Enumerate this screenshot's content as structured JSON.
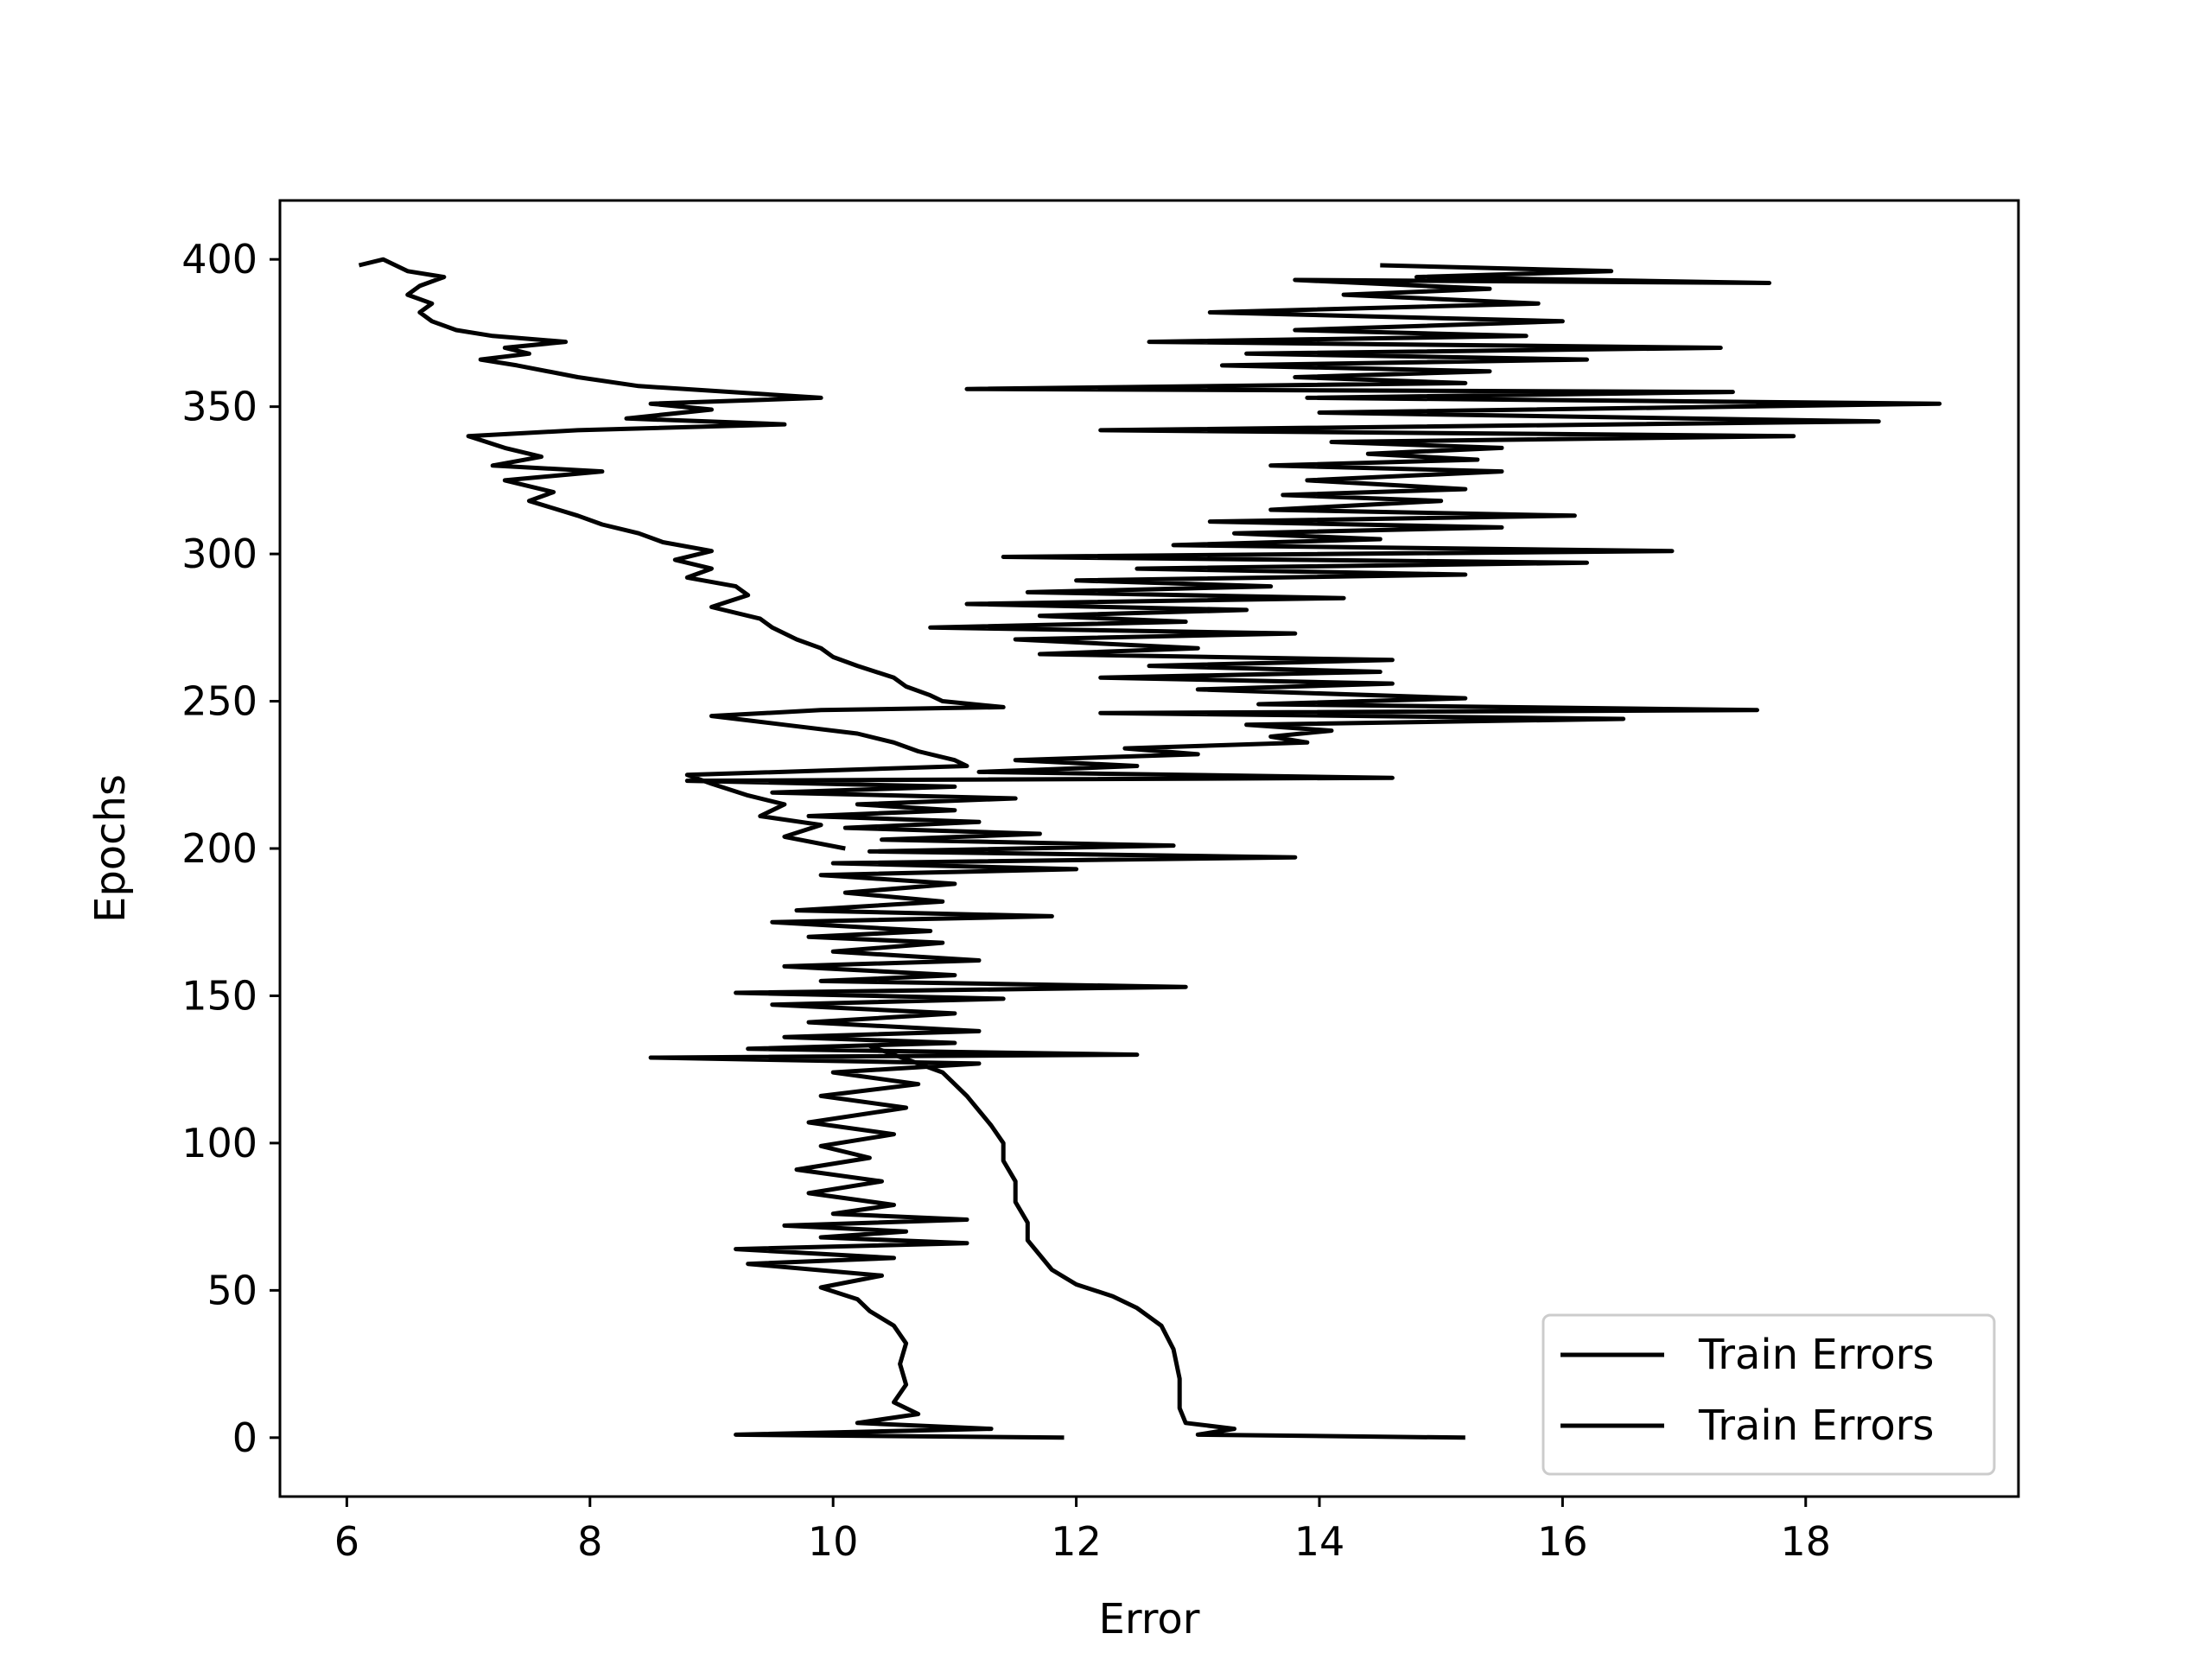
{
  "chart_data": {
    "type": "line",
    "title": "",
    "xlabel": "Error",
    "ylabel": "Epochs",
    "xlim": [
      5.45,
      19.75
    ],
    "ylim": [
      -20,
      420
    ],
    "xticks": [
      6,
      8,
      10,
      12,
      14,
      16,
      18
    ],
    "yticks": [
      0,
      50,
      100,
      150,
      200,
      250,
      300,
      350,
      400
    ],
    "grid": false,
    "legend_position": "lower right",
    "line_color": "#000000",
    "series": [
      {
        "name": "Train Errors",
        "points": [
          [
            11.9,
            0
          ],
          [
            9.2,
            1
          ],
          [
            11.3,
            3
          ],
          [
            10.2,
            5
          ],
          [
            10.7,
            8
          ],
          [
            10.5,
            12
          ],
          [
            10.6,
            18
          ],
          [
            10.55,
            25
          ],
          [
            10.6,
            32
          ],
          [
            10.5,
            38
          ],
          [
            10.3,
            43
          ],
          [
            10.2,
            47
          ],
          [
            9.9,
            51
          ],
          [
            10.4,
            55
          ],
          [
            9.3,
            59
          ],
          [
            10.5,
            61
          ],
          [
            9.2,
            64
          ],
          [
            11.1,
            66
          ],
          [
            9.9,
            68
          ],
          [
            10.6,
            70
          ],
          [
            9.6,
            72
          ],
          [
            11.1,
            74
          ],
          [
            10.0,
            76
          ],
          [
            10.5,
            79
          ],
          [
            9.8,
            83
          ],
          [
            10.4,
            87
          ],
          [
            9.7,
            91
          ],
          [
            10.3,
            95
          ],
          [
            9.9,
            99
          ],
          [
            10.5,
            103
          ],
          [
            9.8,
            107
          ],
          [
            10.6,
            112
          ],
          [
            9.9,
            116
          ],
          [
            10.7,
            120
          ],
          [
            10.0,
            124
          ],
          [
            11.2,
            127
          ],
          [
            8.5,
            129
          ],
          [
            12.5,
            130
          ],
          [
            9.3,
            132
          ],
          [
            11.0,
            134
          ],
          [
            9.6,
            136
          ],
          [
            11.2,
            138
          ],
          [
            9.8,
            141
          ],
          [
            11.0,
            144
          ],
          [
            9.5,
            147
          ],
          [
            11.4,
            149
          ],
          [
            9.2,
            151
          ],
          [
            12.9,
            153
          ],
          [
            9.9,
            155
          ],
          [
            11.0,
            157
          ],
          [
            9.6,
            160
          ],
          [
            11.2,
            162
          ],
          [
            10.0,
            165
          ],
          [
            10.9,
            168
          ],
          [
            9.8,
            170
          ],
          [
            10.8,
            172
          ],
          [
            9.5,
            175
          ],
          [
            11.8,
            177
          ],
          [
            9.7,
            179
          ],
          [
            10.9,
            182
          ],
          [
            10.1,
            185
          ],
          [
            11.0,
            188
          ],
          [
            9.9,
            191
          ],
          [
            12.0,
            193
          ],
          [
            10.0,
            195
          ],
          [
            13.8,
            197
          ],
          [
            10.3,
            199
          ],
          [
            12.8,
            201
          ],
          [
            10.4,
            203
          ],
          [
            11.7,
            205
          ],
          [
            10.1,
            207
          ],
          [
            11.2,
            209
          ],
          [
            9.8,
            211
          ],
          [
            11.0,
            213
          ],
          [
            10.2,
            215
          ],
          [
            11.5,
            217
          ],
          [
            9.5,
            219
          ],
          [
            11.0,
            221
          ],
          [
            8.8,
            223
          ],
          [
            14.6,
            224
          ],
          [
            11.2,
            226
          ],
          [
            12.5,
            228
          ],
          [
            11.5,
            230
          ],
          [
            13.0,
            232
          ],
          [
            12.4,
            234
          ],
          [
            13.9,
            236
          ],
          [
            13.6,
            238
          ],
          [
            14.1,
            240
          ],
          [
            13.4,
            242
          ],
          [
            16.5,
            244
          ],
          [
            12.2,
            246
          ],
          [
            17.6,
            247
          ],
          [
            13.5,
            249
          ],
          [
            15.2,
            251
          ],
          [
            13.0,
            254
          ],
          [
            14.6,
            256
          ],
          [
            12.2,
            258
          ],
          [
            14.5,
            260
          ],
          [
            12.6,
            262
          ],
          [
            14.6,
            264
          ],
          [
            11.7,
            266
          ],
          [
            13.0,
            268
          ],
          [
            11.5,
            271
          ],
          [
            13.8,
            273
          ],
          [
            10.8,
            275
          ],
          [
            12.9,
            277
          ],
          [
            11.7,
            279
          ],
          [
            13.4,
            281
          ],
          [
            11.1,
            283
          ],
          [
            14.2,
            285
          ],
          [
            11.6,
            287
          ],
          [
            13.6,
            289
          ],
          [
            12.0,
            291
          ],
          [
            15.2,
            293
          ],
          [
            12.5,
            295
          ],
          [
            16.2,
            297
          ],
          [
            11.4,
            299
          ],
          [
            16.9,
            301
          ],
          [
            12.8,
            303
          ],
          [
            14.5,
            305
          ],
          [
            13.3,
            307
          ],
          [
            15.5,
            309
          ],
          [
            13.1,
            311
          ],
          [
            16.1,
            313
          ],
          [
            13.6,
            315
          ],
          [
            15.0,
            318
          ],
          [
            13.7,
            320
          ],
          [
            15.2,
            322
          ],
          [
            13.9,
            325
          ],
          [
            15.5,
            328
          ],
          [
            13.6,
            330
          ],
          [
            15.3,
            332
          ],
          [
            14.4,
            334
          ],
          [
            15.5,
            336
          ],
          [
            14.1,
            338
          ],
          [
            17.9,
            340
          ],
          [
            12.2,
            342
          ],
          [
            18.6,
            345
          ],
          [
            14.0,
            348
          ],
          [
            19.1,
            351
          ],
          [
            13.9,
            353
          ],
          [
            17.4,
            355
          ],
          [
            11.1,
            356
          ],
          [
            15.2,
            358
          ],
          [
            13.8,
            360
          ],
          [
            15.4,
            362
          ],
          [
            13.2,
            364
          ],
          [
            16.2,
            366
          ],
          [
            13.4,
            368
          ],
          [
            17.3,
            370
          ],
          [
            12.6,
            372
          ],
          [
            15.7,
            374
          ],
          [
            13.8,
            376
          ],
          [
            16.0,
            379
          ],
          [
            13.1,
            382
          ],
          [
            15.8,
            385
          ],
          [
            14.2,
            388
          ],
          [
            15.4,
            390
          ],
          [
            13.8,
            393
          ],
          [
            17.7,
            392
          ],
          [
            14.8,
            394
          ],
          [
            16.4,
            396
          ],
          [
            14.5,
            398
          ]
        ]
      },
      {
        "name": "Train Errors",
        "points": [
          [
            15.2,
            0
          ],
          [
            13.0,
            1
          ],
          [
            13.3,
            3
          ],
          [
            12.9,
            5
          ],
          [
            12.85,
            10
          ],
          [
            12.85,
            20
          ],
          [
            12.8,
            30
          ],
          [
            12.7,
            38
          ],
          [
            12.5,
            44
          ],
          [
            12.3,
            48
          ],
          [
            12.0,
            52
          ],
          [
            11.8,
            57
          ],
          [
            11.7,
            62
          ],
          [
            11.6,
            67
          ],
          [
            11.6,
            73
          ],
          [
            11.5,
            80
          ],
          [
            11.5,
            87
          ],
          [
            11.4,
            94
          ],
          [
            11.4,
            100
          ],
          [
            11.3,
            106
          ],
          [
            11.2,
            111
          ],
          [
            11.1,
            116
          ],
          [
            11.0,
            120
          ],
          [
            10.9,
            124
          ],
          [
            10.7,
            127
          ],
          [
            10.5,
            130
          ],
          [
            10.3,
            133
          ]
        ]
      },
      {
        "name": "",
        "points": [
          [
            6.1,
            398
          ],
          [
            6.3,
            400
          ],
          [
            6.5,
            396
          ],
          [
            6.8,
            394
          ],
          [
            6.6,
            391
          ],
          [
            6.5,
            388
          ],
          [
            6.7,
            385
          ],
          [
            6.6,
            382
          ],
          [
            6.7,
            379
          ],
          [
            6.9,
            376
          ],
          [
            7.2,
            374
          ],
          [
            7.8,
            372
          ],
          [
            7.3,
            370
          ],
          [
            7.5,
            368
          ],
          [
            7.1,
            366
          ],
          [
            7.4,
            364
          ],
          [
            7.9,
            360
          ],
          [
            8.4,
            357
          ],
          [
            9.9,
            353
          ],
          [
            8.5,
            351
          ],
          [
            9.0,
            349
          ],
          [
            8.3,
            346
          ],
          [
            9.6,
            344
          ],
          [
            7.9,
            342
          ],
          [
            7.0,
            340
          ],
          [
            7.3,
            336
          ],
          [
            7.6,
            333
          ],
          [
            7.2,
            330
          ],
          [
            8.1,
            328
          ],
          [
            7.3,
            325
          ],
          [
            7.7,
            321
          ],
          [
            7.5,
            318
          ],
          [
            7.9,
            313
          ],
          [
            8.1,
            310
          ],
          [
            8.4,
            307
          ],
          [
            8.6,
            304
          ],
          [
            9.0,
            301
          ],
          [
            8.7,
            298
          ],
          [
            9.0,
            295
          ],
          [
            8.8,
            292
          ],
          [
            9.2,
            289
          ],
          [
            9.3,
            286
          ],
          [
            9.0,
            282
          ],
          [
            9.4,
            278
          ],
          [
            9.5,
            275
          ],
          [
            9.7,
            271
          ],
          [
            9.9,
            268
          ],
          [
            10.0,
            265
          ],
          [
            10.2,
            262
          ],
          [
            10.5,
            258
          ],
          [
            10.6,
            255
          ],
          [
            10.8,
            252
          ],
          [
            10.9,
            250
          ],
          [
            11.4,
            248
          ],
          [
            9.9,
            247
          ],
          [
            9.0,
            245
          ],
          [
            9.6,
            242
          ],
          [
            10.2,
            239
          ],
          [
            10.5,
            236
          ],
          [
            10.7,
            233
          ],
          [
            11.0,
            230
          ],
          [
            11.1,
            228
          ],
          [
            8.8,
            225
          ],
          [
            9.0,
            222
          ],
          [
            9.3,
            218
          ],
          [
            9.6,
            215
          ],
          [
            9.4,
            211
          ],
          [
            9.9,
            208
          ],
          [
            9.6,
            204
          ],
          [
            10.1,
            200
          ]
        ]
      }
    ]
  },
  "legend": {
    "entries": [
      "Train Errors",
      "Train Errors"
    ]
  }
}
